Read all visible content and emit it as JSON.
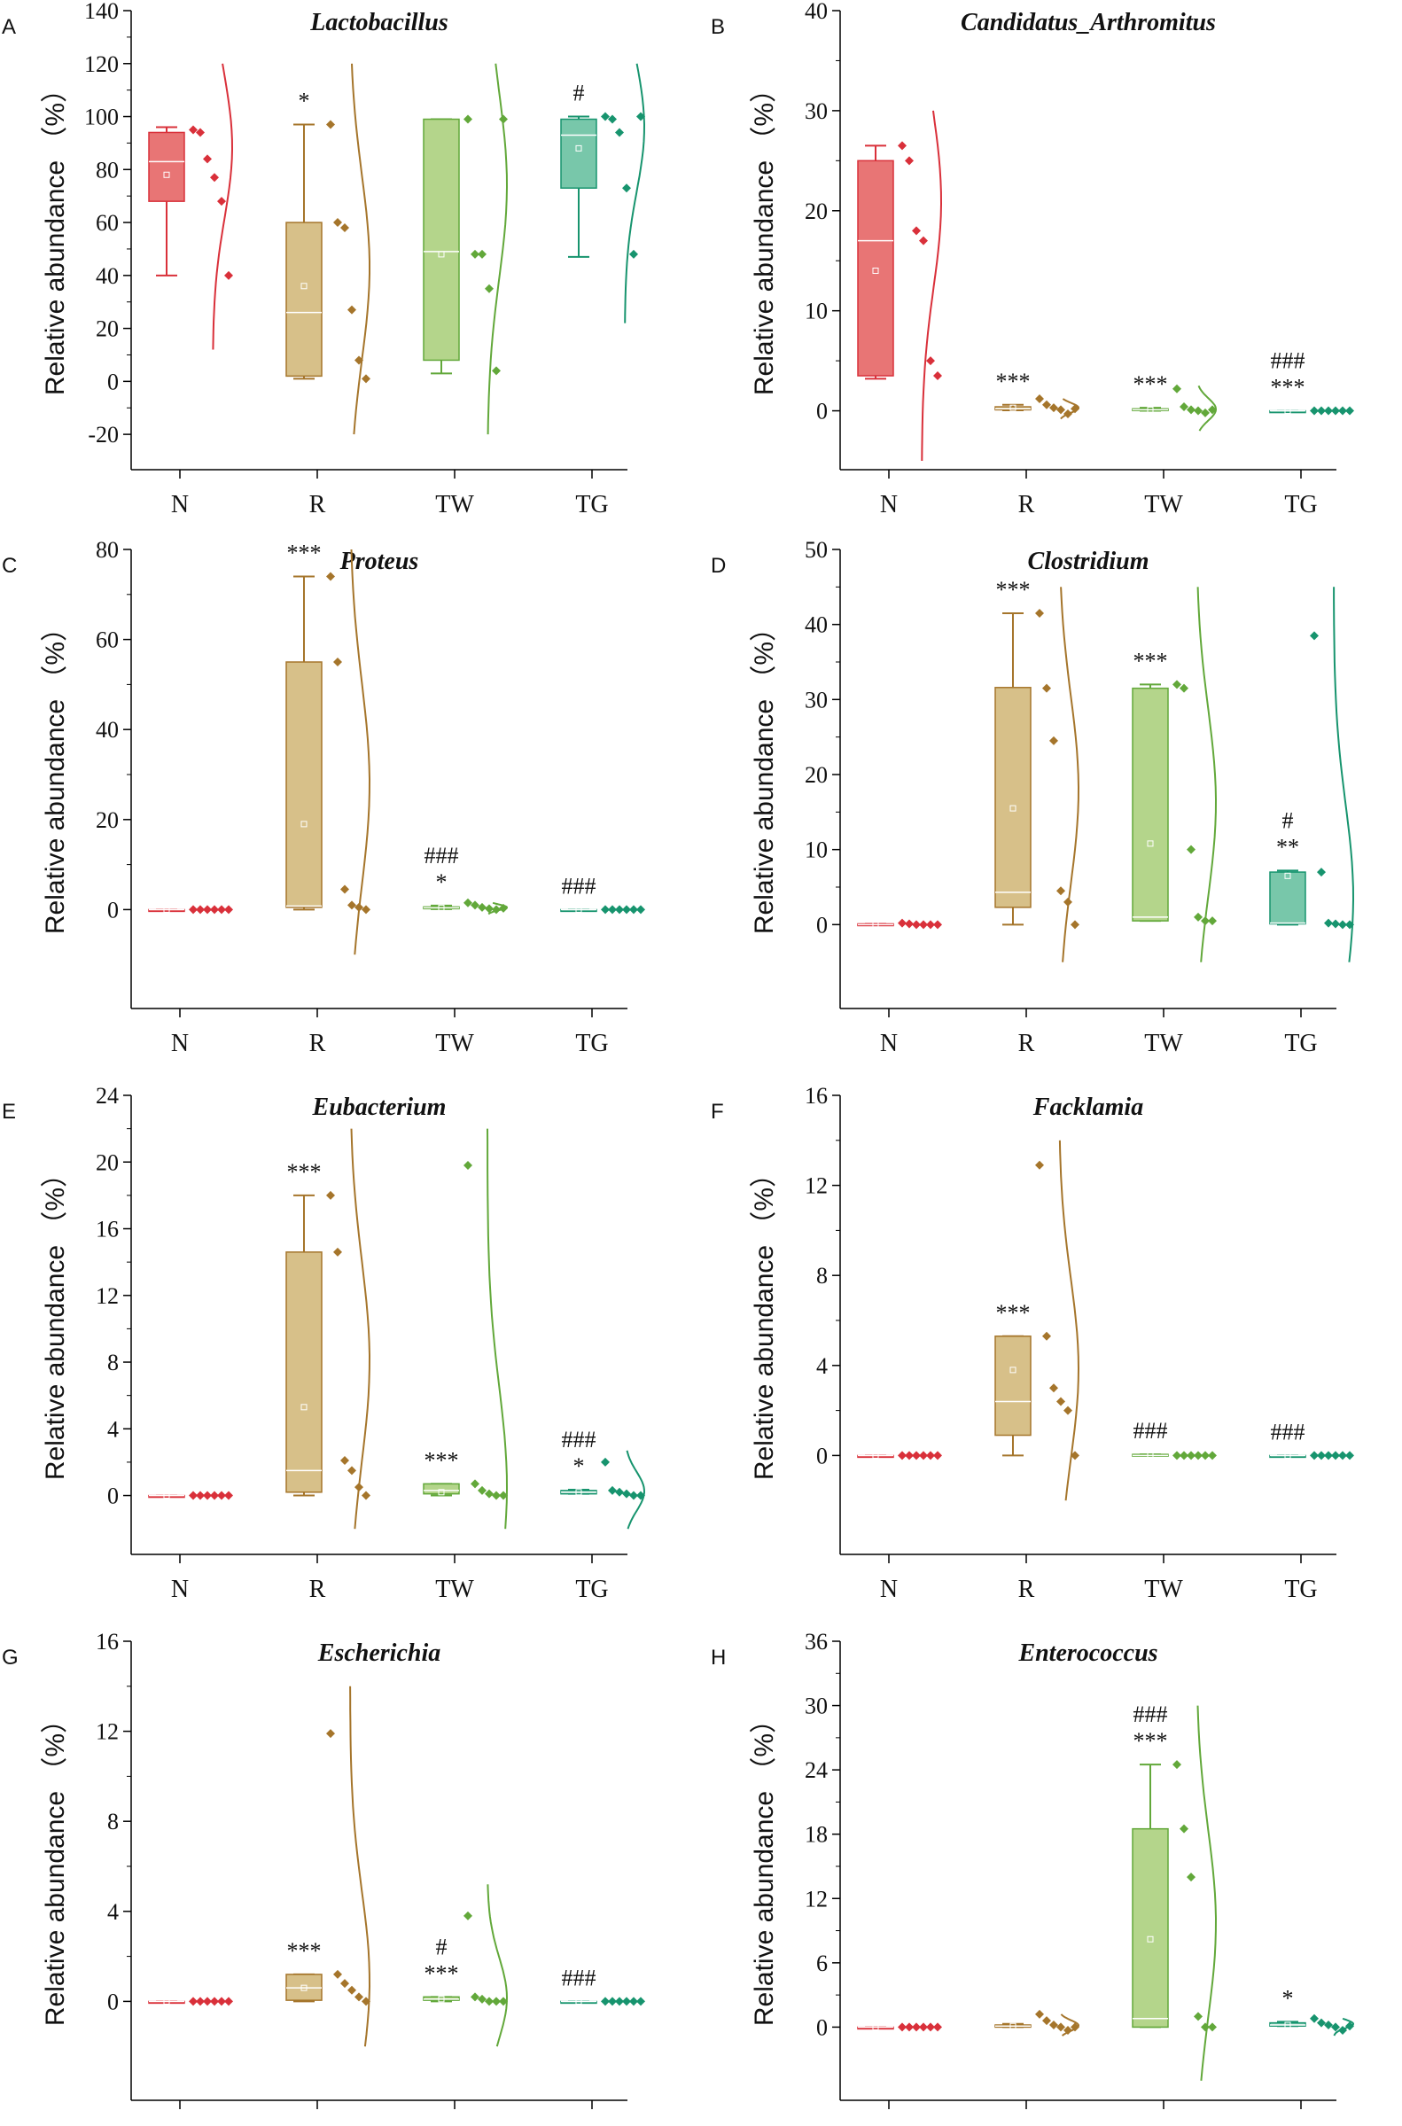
{
  "figure": {
    "y_axis_label": "Relative abundance （%）"
  },
  "groups": [
    "N",
    "R",
    "TW",
    "TG"
  ],
  "colors": {
    "N": "#d9303a",
    "R": "#a5752b",
    "TW": "#62a83a",
    "TG": "#17946e"
  },
  "fills": {
    "N": "#e87575",
    "R": "#d7c089",
    "TW": "#b4d58b",
    "TG": "#78c7aa"
  },
  "chart_data": [
    {
      "type": "box",
      "panel": "A",
      "title": "Lactobacillus",
      "ylim": [
        -30,
        140
      ],
      "yticks": [
        -20,
        0,
        20,
        40,
        60,
        80,
        100,
        120,
        140
      ],
      "ytick_labels": [
        "-20",
        "0",
        "20",
        "40",
        "60",
        "80",
        "100",
        "120",
        "140"
      ],
      "boxes": [
        {
          "group": "N",
          "q1": 68,
          "median": 83,
          "q3": 94,
          "whisker_low": 40,
          "whisker_high": 96,
          "mean": 78,
          "points": [
            95,
            94,
            84,
            77,
            68,
            40
          ],
          "curve": [
            12,
            120
          ],
          "sig": []
        },
        {
          "group": "R",
          "q1": 2,
          "median": 26,
          "q3": 60,
          "whisker_low": 1,
          "whisker_high": 97,
          "mean": 36,
          "points": [
            97,
            60,
            58,
            27,
            8,
            1
          ],
          "curve": [
            -20,
            120
          ],
          "sig": [
            "*"
          ]
        },
        {
          "group": "TW",
          "q1": 8,
          "median": 49,
          "q3": 99,
          "whisker_low": 3,
          "whisker_high": 99,
          "mean": 48,
          "points": [
            99,
            48,
            48,
            35,
            4,
            99
          ],
          "curve": [
            -20,
            120
          ],
          "sig": []
        },
        {
          "group": "TG",
          "q1": 73,
          "median": 93,
          "q3": 99,
          "whisker_low": 47,
          "whisker_high": 100,
          "mean": 88,
          "points": [
            100,
            99,
            94,
            73,
            48,
            100
          ],
          "curve": [
            22,
            120
          ],
          "sig": [
            "#"
          ]
        }
      ]
    },
    {
      "type": "box",
      "panel": "B",
      "title": "Candidatus_Arthromitus",
      "ylim": [
        -5,
        40
      ],
      "yticks": [
        0,
        10,
        20,
        30,
        40
      ],
      "ytick_labels": [
        "0",
        "10",
        "20",
        "30",
        "40"
      ],
      "boxes": [
        {
          "group": "N",
          "q1": 3.5,
          "median": 17,
          "q3": 25,
          "whisker_low": 3.2,
          "whisker_high": 26.5,
          "mean": 14,
          "points": [
            26.5,
            25,
            18,
            17,
            5,
            3.5
          ],
          "curve": [
            -5,
            30
          ],
          "sig": []
        },
        {
          "group": "R",
          "q1": 0.1,
          "median": 0.2,
          "q3": 0.4,
          "whisker_low": 0.05,
          "whisker_high": 0.6,
          "mean": 0.3,
          "points": [
            1.2,
            0.6,
            0.3,
            0.1,
            -0.3,
            0.2
          ],
          "curve": [
            -0.8,
            1.2
          ],
          "sig": [
            "***"
          ]
        },
        {
          "group": "TW",
          "q1": 0.05,
          "median": 0.1,
          "q3": 0.2,
          "whisker_low": 0.0,
          "whisker_high": 0.3,
          "mean": 0.1,
          "points": [
            2.2,
            0.4,
            0.1,
            0.0,
            -0.2,
            0.1
          ],
          "curve": [
            -2,
            2.5
          ],
          "sig": [
            "***"
          ]
        },
        {
          "group": "TG",
          "q1": 0,
          "median": 0,
          "q3": 0,
          "whisker_low": 0,
          "whisker_high": 0,
          "mean": 0,
          "points": [
            0,
            0,
            0,
            0,
            0,
            0
          ],
          "curve": null,
          "sig": [
            "###",
            "***"
          ]
        }
      ]
    },
    {
      "type": "box",
      "panel": "C",
      "title": "Proteus",
      "ylim": [
        -20,
        80
      ],
      "yticks": [
        0,
        20,
        40,
        60,
        80
      ],
      "ytick_labels": [
        "0",
        "20",
        "40",
        "60",
        "80"
      ],
      "boxes": [
        {
          "group": "N",
          "q1": 0,
          "median": 0,
          "q3": 0,
          "whisker_low": 0,
          "whisker_high": 0,
          "mean": 0,
          "points": [
            0,
            0,
            0,
            0,
            0,
            0
          ],
          "curve": null,
          "sig": []
        },
        {
          "group": "R",
          "q1": 0.5,
          "median": 0.8,
          "q3": 55,
          "whisker_low": 0,
          "whisker_high": 74,
          "mean": 19,
          "points": [
            74,
            55,
            4.5,
            1,
            0.5,
            0
          ],
          "curve": [
            -10,
            80
          ],
          "sig": [
            "***"
          ]
        },
        {
          "group": "TW",
          "q1": 0.2,
          "median": 0.4,
          "q3": 0.6,
          "whisker_low": 0.1,
          "whisker_high": 0.9,
          "mean": 0.4,
          "points": [
            1.5,
            1,
            0.5,
            0.2,
            0,
            0.3
          ],
          "curve": [
            -1,
            1.5
          ],
          "sig": [
            "###",
            "*"
          ]
        },
        {
          "group": "TG",
          "q1": 0,
          "median": 0,
          "q3": 0,
          "whisker_low": 0,
          "whisker_high": 0,
          "mean": 0,
          "points": [
            0,
            0,
            0,
            0,
            0,
            0
          ],
          "curve": null,
          "sig": [
            "###"
          ]
        }
      ]
    },
    {
      "type": "box",
      "panel": "D",
      "title": "Clostridium",
      "ylim": [
        -10,
        50
      ],
      "yticks": [
        0,
        10,
        20,
        30,
        40,
        50
      ],
      "ytick_labels": [
        "0",
        "10",
        "20",
        "30",
        "40",
        "50"
      ],
      "boxes": [
        {
          "group": "N",
          "q1": 0,
          "median": 0,
          "q3": 0.1,
          "whisker_low": 0,
          "whisker_high": 0.1,
          "mean": 0,
          "points": [
            0.2,
            0.1,
            0,
            0,
            0,
            0
          ],
          "curve": null,
          "sig": []
        },
        {
          "group": "R",
          "q1": 2.3,
          "median": 4.3,
          "q3": 31.6,
          "whisker_low": 0,
          "whisker_high": 41.5,
          "mean": 15.5,
          "points": [
            41.5,
            31.5,
            24.5,
            4.5,
            3,
            0
          ],
          "curve": [
            -5,
            45
          ],
          "sig": [
            "***"
          ]
        },
        {
          "group": "TW",
          "q1": 0.5,
          "median": 1,
          "q3": 31.5,
          "whisker_low": 0.5,
          "whisker_high": 32,
          "mean": 10.8,
          "points": [
            32,
            31.5,
            10,
            1,
            0.5,
            0.5
          ],
          "curve": [
            -5,
            45
          ],
          "sig": [
            "***"
          ]
        },
        {
          "group": "TG",
          "q1": 0.1,
          "median": 0.2,
          "q3": 7,
          "whisker_low": 0,
          "whisker_high": 7.2,
          "mean": 6.5,
          "points": [
            38.5,
            7,
            0.2,
            0.1,
            0,
            0
          ],
          "curve": [
            -5,
            45
          ],
          "sig": [
            "#",
            "**"
          ]
        }
      ]
    },
    {
      "type": "box",
      "panel": "E",
      "title": "Eubacterium",
      "ylim": [
        -3,
        24
      ],
      "yticks": [
        0,
        4,
        8,
        12,
        16,
        20,
        24
      ],
      "ytick_labels": [
        "0",
        "4",
        "8",
        "12",
        "16",
        "20",
        "24"
      ],
      "boxes": [
        {
          "group": "N",
          "q1": 0,
          "median": 0,
          "q3": 0,
          "whisker_low": 0,
          "whisker_high": 0,
          "mean": 0,
          "points": [
            0,
            0,
            0,
            0,
            0,
            0
          ],
          "curve": null,
          "sig": []
        },
        {
          "group": "R",
          "q1": 0.2,
          "median": 1.5,
          "q3": 14.6,
          "whisker_low": 0,
          "whisker_high": 18,
          "mean": 5.3,
          "points": [
            18,
            14.6,
            2.1,
            1.5,
            0.5,
            0
          ],
          "curve": [
            -2,
            22
          ],
          "sig": [
            "***"
          ]
        },
        {
          "group": "TW",
          "q1": 0.1,
          "median": 0.3,
          "q3": 0.7,
          "whisker_low": 0,
          "whisker_high": 0.7,
          "mean": 0.2,
          "points": [
            19.8,
            0.7,
            0.3,
            0.1,
            0,
            0
          ],
          "curve": [
            -2,
            22
          ],
          "sig": [
            "***"
          ]
        },
        {
          "group": "TG",
          "q1": 0.1,
          "median": 0.2,
          "q3": 0.3,
          "whisker_low": 0.1,
          "whisker_high": 0.35,
          "mean": 0.2,
          "points": [
            2,
            0.3,
            0.2,
            0.1,
            0,
            0
          ],
          "curve": [
            -2,
            2.7
          ],
          "sig": [
            "###",
            "*"
          ]
        }
      ]
    },
    {
      "type": "box",
      "panel": "F",
      "title": "Facklamia",
      "ylim": [
        -4,
        16
      ],
      "yticks": [
        0,
        4,
        8,
        12,
        16
      ],
      "ytick_labels": [
        "0",
        "4",
        "8",
        "12",
        "16"
      ],
      "boxes": [
        {
          "group": "N",
          "q1": 0,
          "median": 0,
          "q3": 0,
          "whisker_low": 0,
          "whisker_high": 0,
          "mean": 0,
          "points": [
            0,
            0,
            0,
            0,
            0,
            0
          ],
          "curve": null,
          "sig": []
        },
        {
          "group": "R",
          "q1": 0.9,
          "median": 2.4,
          "q3": 5.3,
          "whisker_low": 0,
          "whisker_high": 5.3,
          "mean": 3.8,
          "points": [
            12.9,
            5.3,
            3,
            2.4,
            2,
            0
          ],
          "curve": [
            -2,
            14
          ],
          "sig": [
            "***"
          ]
        },
        {
          "group": "TW",
          "q1": 0,
          "median": 0,
          "q3": 0.05,
          "whisker_low": 0,
          "whisker_high": 0.05,
          "mean": 0,
          "points": [
            0,
            0,
            0,
            0,
            0,
            0
          ],
          "curve": null,
          "sig": [
            "###"
          ]
        },
        {
          "group": "TG",
          "q1": 0,
          "median": 0,
          "q3": 0,
          "whisker_low": 0,
          "whisker_high": 0,
          "mean": 0,
          "points": [
            0,
            0,
            0,
            0,
            0,
            0
          ],
          "curve": null,
          "sig": [
            "###"
          ]
        }
      ]
    },
    {
      "type": "box",
      "panel": "G",
      "title": "Escherichia",
      "ylim": [
        -4,
        16
      ],
      "yticks": [
        0,
        4,
        8,
        12,
        16
      ],
      "ytick_labels": [
        "0",
        "4",
        "8",
        "12",
        "16"
      ],
      "boxes": [
        {
          "group": "N",
          "q1": 0,
          "median": 0,
          "q3": 0,
          "whisker_low": 0,
          "whisker_high": 0,
          "mean": 0,
          "points": [
            0,
            0,
            0,
            0,
            0,
            0
          ],
          "curve": null,
          "sig": []
        },
        {
          "group": "R",
          "q1": 0.05,
          "median": 0.6,
          "q3": 1.2,
          "whisker_low": 0,
          "whisker_high": 1.2,
          "mean": 0.6,
          "points": [
            11.9,
            1.2,
            0.8,
            0.5,
            0.2,
            0
          ],
          "curve": [
            -2,
            14
          ],
          "sig": [
            "***"
          ]
        },
        {
          "group": "TW",
          "q1": 0.05,
          "median": 0.1,
          "q3": 0.2,
          "whisker_low": 0,
          "whisker_high": 0.2,
          "mean": 0.1,
          "points": [
            3.8,
            0.2,
            0.1,
            0,
            0,
            0
          ],
          "curve": [
            -2,
            5.2
          ],
          "sig": [
            "#",
            "***"
          ]
        },
        {
          "group": "TG",
          "q1": 0,
          "median": 0,
          "q3": 0,
          "whisker_low": 0,
          "whisker_high": 0,
          "mean": 0,
          "points": [
            0,
            0,
            0,
            0,
            0,
            0
          ],
          "curve": null,
          "sig": [
            "###"
          ]
        }
      ]
    },
    {
      "type": "box",
      "panel": "H",
      "title": "Enterococcus",
      "ylim": [
        -6,
        36
      ],
      "yticks": [
        0,
        6,
        12,
        18,
        24,
        30,
        36
      ],
      "ytick_labels": [
        "0",
        "6",
        "12",
        "18",
        "24",
        "30",
        "36"
      ],
      "boxes": [
        {
          "group": "N",
          "q1": 0,
          "median": 0,
          "q3": 0,
          "whisker_low": 0,
          "whisker_high": 0,
          "mean": 0,
          "points": [
            0,
            0,
            0,
            0,
            0,
            0
          ],
          "curve": null,
          "sig": []
        },
        {
          "group": "R",
          "q1": 0,
          "median": 0.1,
          "q3": 0.2,
          "whisker_low": 0,
          "whisker_high": 0.3,
          "mean": 0.1,
          "points": [
            1.2,
            0.6,
            0.2,
            0,
            -0.3,
            0
          ],
          "curve": [
            -0.8,
            1.2
          ],
          "sig": []
        },
        {
          "group": "TW",
          "q1": 0,
          "median": 0.8,
          "q3": 18.5,
          "whisker_low": 0,
          "whisker_high": 24.5,
          "mean": 8.2,
          "points": [
            24.5,
            18.5,
            14,
            1,
            0,
            0
          ],
          "curve": [
            -5,
            30
          ],
          "sig": [
            "###",
            "***"
          ]
        },
        {
          "group": "TG",
          "q1": 0.1,
          "median": 0.2,
          "q3": 0.4,
          "whisker_low": 0.1,
          "whisker_high": 0.5,
          "mean": 0.2,
          "points": [
            0.8,
            0.4,
            0.2,
            0,
            -0.3,
            0.1
          ],
          "curve": [
            -0.8,
            0.8
          ],
          "sig": [
            "*"
          ]
        }
      ]
    }
  ]
}
